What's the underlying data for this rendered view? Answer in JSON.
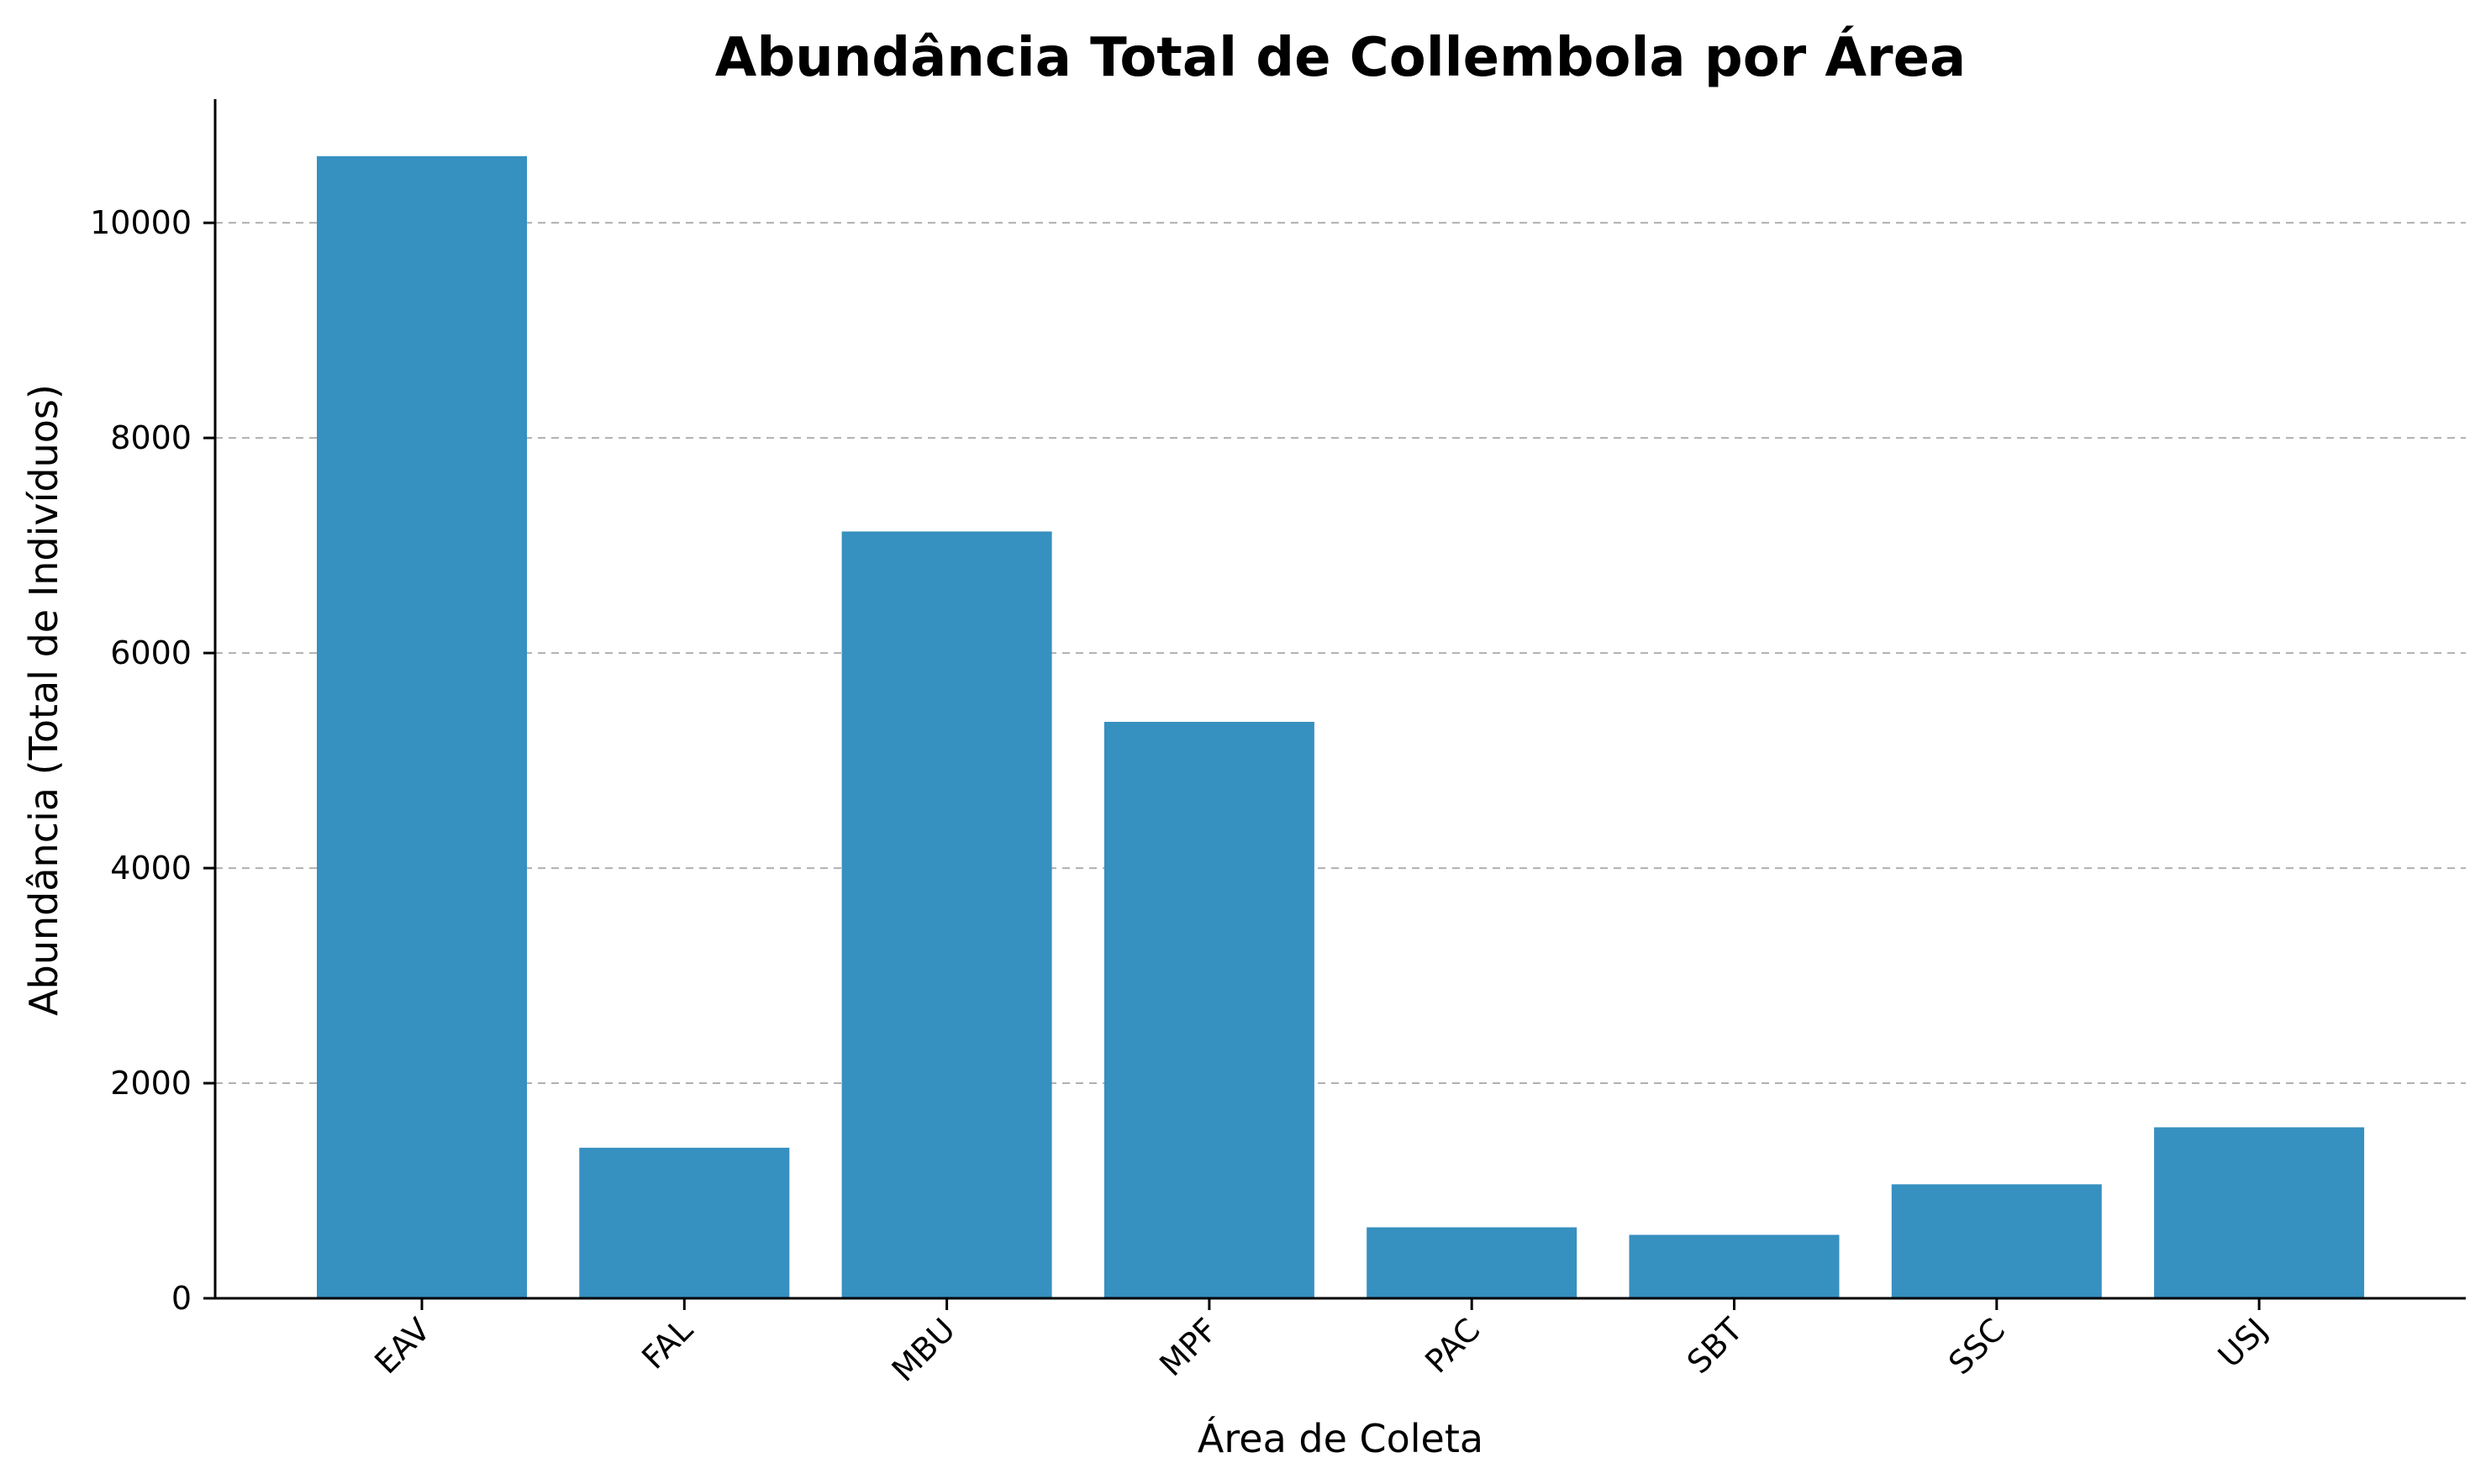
{
  "chart_data": {
    "type": "bar",
    "title": "Abundância Total de Collembola por Área",
    "xlabel": "Área de Coleta",
    "ylabel": "Abundância (Total de Indivíduos)",
    "categories": [
      "EAV",
      "FAL",
      "MBU",
      "MPF",
      "PAC",
      "SBT",
      "SSC",
      "USJ"
    ],
    "values": [
      10620,
      1400,
      7130,
      5360,
      660,
      590,
      1060,
      1590
    ],
    "ylim": [
      0,
      11150
    ],
    "yticks": [
      0,
      2000,
      4000,
      6000,
      8000,
      10000
    ],
    "grid": "y-dashed",
    "bar_color": "#3690c0",
    "grid_color": "#b0b0b0"
  }
}
